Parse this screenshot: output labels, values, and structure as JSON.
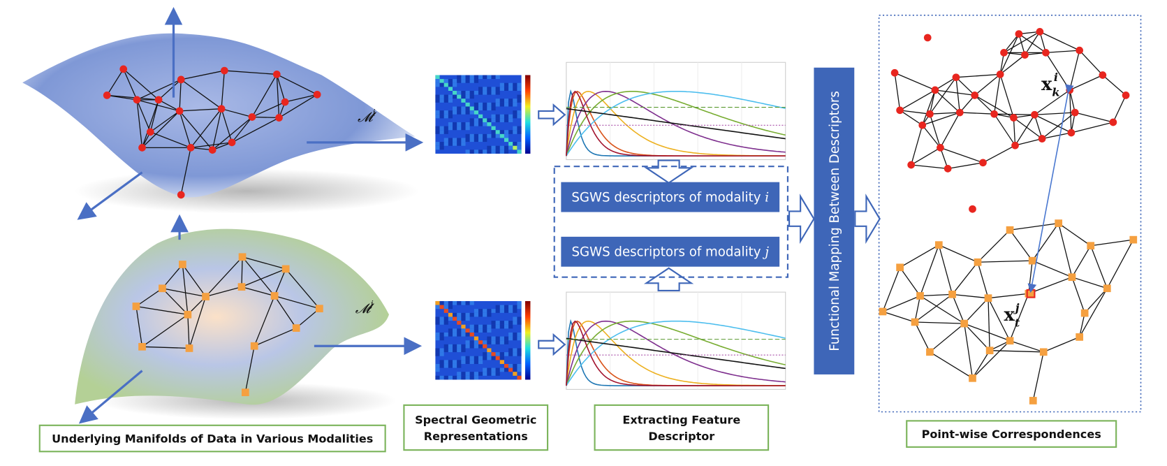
{
  "labels": {
    "manifolds": "Underlying Manifolds of Data in Various Modalities",
    "spectral": [
      "Spectral Geometric",
      "Representations"
    ],
    "extracting": [
      "Extracting Feature",
      "Descriptor"
    ],
    "correspondences": "Point-wise Correspondences"
  },
  "manifold_i": {
    "base": "𝓜",
    "sup": "i"
  },
  "manifold_j": {
    "base": "𝓜",
    "sup": "j"
  },
  "descriptors": [
    {
      "text": "SGWS descriptors of modality",
      "var": "i"
    },
    {
      "text": "SGWS descriptors of modality",
      "var": "j"
    }
  ],
  "mapping": "Functional Mapping Between Descriptors",
  "point_k": {
    "base": "x",
    "sub": "k",
    "sup": "i"
  },
  "point_t": {
    "base": "x",
    "sub": "t",
    "sup": "j"
  }
}
